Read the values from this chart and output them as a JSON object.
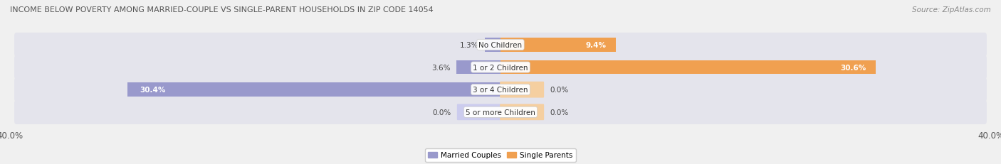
{
  "title": "INCOME BELOW POVERTY AMONG MARRIED-COUPLE VS SINGLE-PARENT HOUSEHOLDS IN ZIP CODE 14054",
  "source": "Source: ZipAtlas.com",
  "categories": [
    "No Children",
    "1 or 2 Children",
    "3 or 4 Children",
    "5 or more Children"
  ],
  "married_values": [
    1.3,
    3.6,
    30.4,
    0.0
  ],
  "single_values": [
    9.4,
    30.6,
    0.0,
    0.0
  ],
  "married_color": "#9999cc",
  "single_color": "#f0a050",
  "married_color_light": "#ccccee",
  "single_color_light": "#f5cfa0",
  "married_label": "Married Couples",
  "single_label": "Single Parents",
  "xlim": 40.0,
  "bg_color": "#f0f0f0",
  "bar_bg_color": "#e4e4ec",
  "bar_height": 0.62,
  "category_fontsize": 7.5,
  "title_fontsize": 8.0,
  "source_fontsize": 7.5,
  "axis_label_fontsize": 8.5,
  "value_fontsize": 7.5
}
